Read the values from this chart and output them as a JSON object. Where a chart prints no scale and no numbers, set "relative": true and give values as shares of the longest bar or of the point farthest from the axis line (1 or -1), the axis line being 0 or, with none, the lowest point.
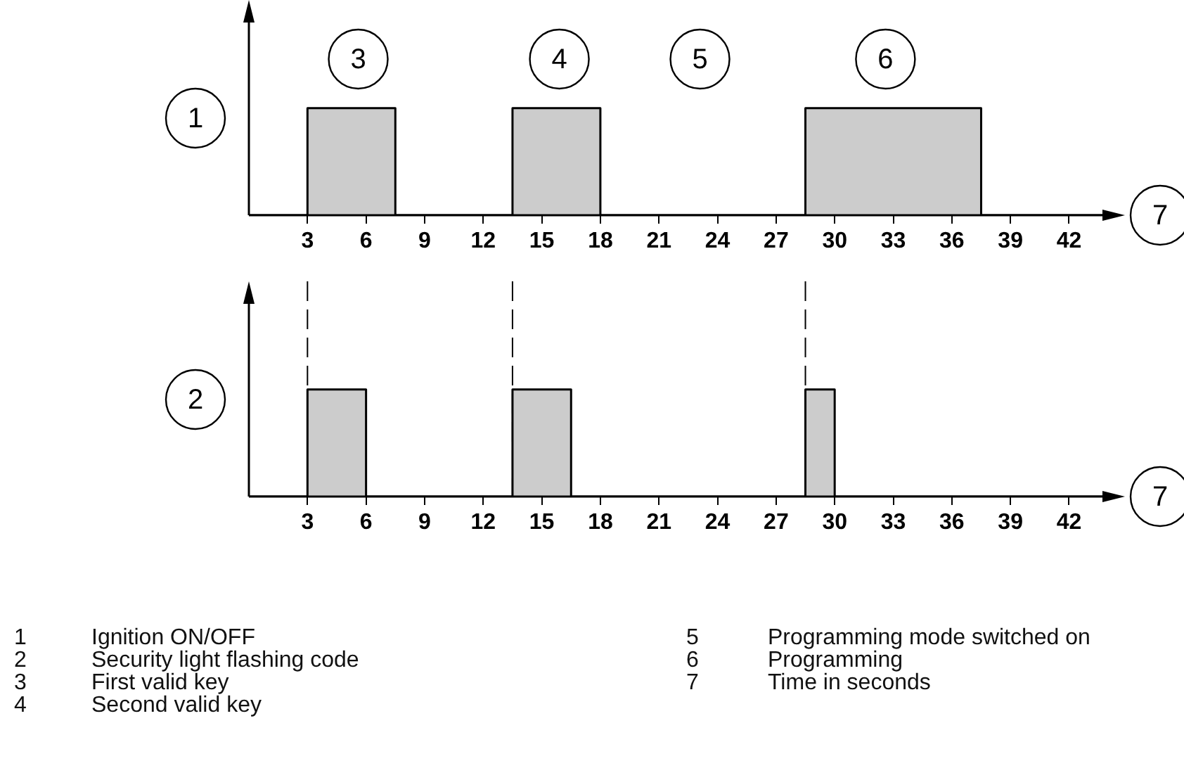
{
  "chart_data": [
    {
      "type": "area",
      "relative": true,
      "color": "#cccccc",
      "xlim": [
        0,
        44
      ],
      "xticks": [
        3,
        6,
        9,
        12,
        15,
        18,
        21,
        24,
        27,
        30,
        33,
        36,
        39,
        42
      ],
      "ylabel": "1",
      "xlabel": "7",
      "grid": false,
      "x": [
        0,
        3,
        3,
        7.5,
        7.5,
        13.5,
        13.5,
        18,
        18,
        28.5,
        28.5,
        37.5,
        37.5,
        44
      ],
      "values": [
        0,
        0,
        1,
        1,
        0,
        0,
        1,
        1,
        0,
        0,
        1,
        1,
        0,
        0
      ],
      "annotations": [
        "3",
        "4",
        "5",
        "6"
      ]
    },
    {
      "type": "area",
      "relative": true,
      "color": "#cccccc",
      "xlim": [
        0,
        44
      ],
      "xticks": [
        3,
        6,
        9,
        12,
        15,
        18,
        21,
        24,
        27,
        30,
        33,
        36,
        39,
        42
      ],
      "ylabel": "2",
      "xlabel": "7",
      "grid": false,
      "x": [
        0,
        3,
        3,
        6,
        6,
        13.5,
        13.5,
        16.5,
        16.5,
        28.5,
        28.5,
        30,
        30,
        44
      ],
      "values": [
        0,
        0,
        1,
        1,
        0,
        0,
        1,
        1,
        0,
        0,
        1,
        1,
        0,
        0
      ],
      "ref_lines": [
        {
          "axis": "x",
          "value": 3,
          "line_style": "dashed"
        },
        {
          "axis": "x",
          "value": 13.5,
          "line_style": "dashed"
        },
        {
          "axis": "x",
          "value": 28.5,
          "line_style": "dashed"
        }
      ],
      "annotations": [
        "1 Ignition ON/OFF",
        "2 Security light flashing code",
        "3 First valid key",
        "4 Second valid key",
        "5 Programming mode switched on",
        "6 Programming",
        "7 Time in seconds"
      ]
    }
  ]
}
